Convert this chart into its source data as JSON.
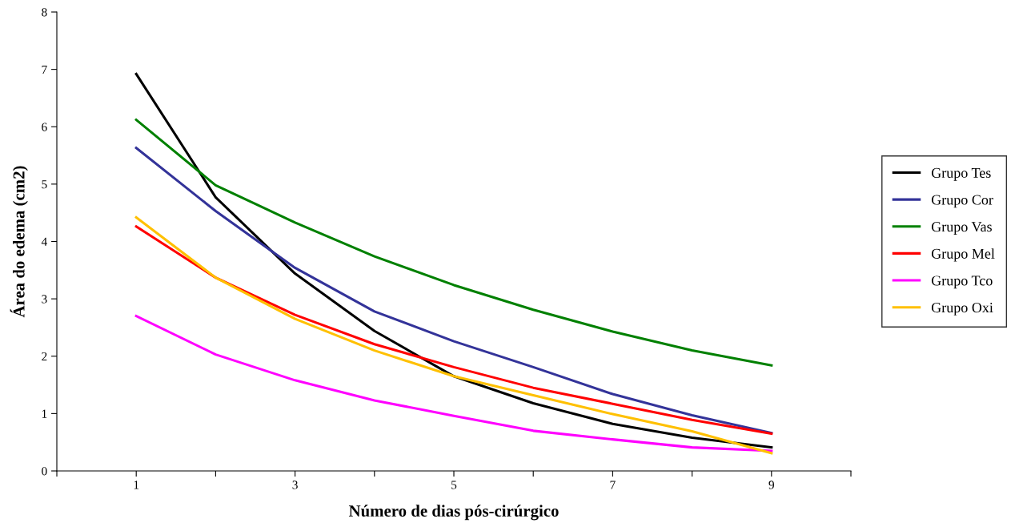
{
  "chart_data": {
    "type": "line",
    "xlabel": "Número de dias pós-cirúrgico",
    "ylabel": "Área do edema (cm2)",
    "x": [
      1,
      2,
      3,
      4,
      5,
      6,
      7,
      8,
      9
    ],
    "xlim": [
      0,
      10
    ],
    "ylim": [
      0,
      8
    ],
    "xticks": [
      {
        "value": 0,
        "label": null
      },
      1,
      {
        "value": 2,
        "label": null
      },
      3,
      {
        "value": 4,
        "label": null
      },
      5,
      {
        "value": 6,
        "label": null
      },
      7,
      {
        "value": 8,
        "label": null
      },
      9,
      {
        "value": 10,
        "label": null
      }
    ],
    "yticks": [
      0,
      1,
      2,
      3,
      4,
      5,
      6,
      7,
      8
    ],
    "grid": false,
    "legend": "right",
    "marker": "none",
    "line_style": "solid",
    "series": [
      {
        "name": "Grupo Tes",
        "color": "#000000",
        "values": [
          6.92,
          4.77,
          3.44,
          2.44,
          1.65,
          1.18,
          0.82,
          0.58,
          0.41
        ]
      },
      {
        "name": "Grupo Cor",
        "color": "#333399",
        "values": [
          5.63,
          4.53,
          3.54,
          2.78,
          2.26,
          1.81,
          1.34,
          0.97,
          0.66
        ]
      },
      {
        "name": "Grupo Vas",
        "color": "#008000",
        "values": [
          6.12,
          4.98,
          4.33,
          3.74,
          3.24,
          2.81,
          2.43,
          2.1,
          1.84
        ]
      },
      {
        "name": "Grupo Mel",
        "color": "#ff0000",
        "values": [
          4.26,
          3.37,
          2.72,
          2.21,
          1.81,
          1.45,
          1.17,
          0.89,
          0.65
        ]
      },
      {
        "name": "Grupo Tco",
        "color": "#ff00ff",
        "values": [
          2.7,
          2.03,
          1.58,
          1.23,
          0.96,
          0.7,
          0.55,
          0.41,
          0.35
        ]
      },
      {
        "name": "Grupo Oxi",
        "color": "#ffc000",
        "values": [
          4.42,
          3.37,
          2.65,
          2.1,
          1.65,
          1.32,
          0.99,
          0.69,
          0.31
        ]
      }
    ]
  }
}
